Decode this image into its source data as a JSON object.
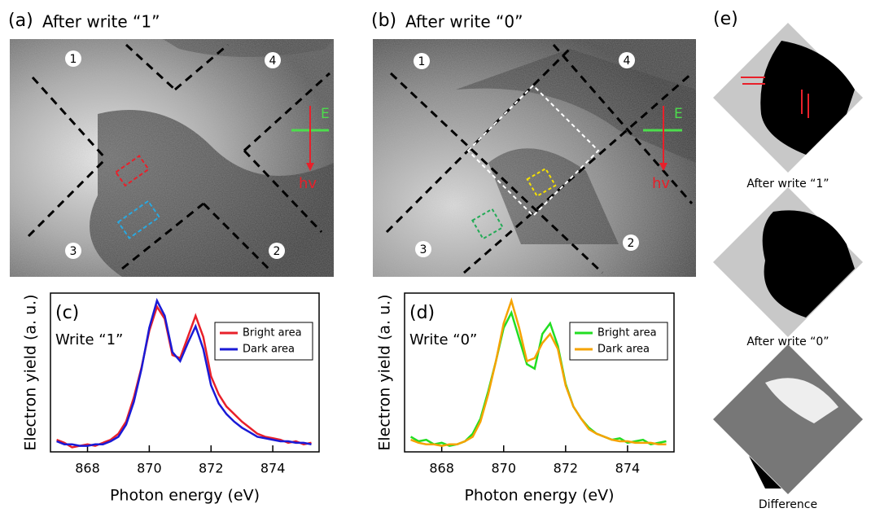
{
  "panels": {
    "a": {
      "label": "(a)",
      "title": "After write “1”",
      "regions": [
        "1",
        "4",
        "3",
        "2"
      ],
      "e_label": "E",
      "hv_label": "hv"
    },
    "b": {
      "label": "(b)",
      "title": "After write “0”",
      "regions": [
        "1",
        "4",
        "3",
        "2"
      ],
      "e_label": "E",
      "hv_label": "hv"
    },
    "e": {
      "label": "(e)",
      "captions": [
        "After write “1”",
        "After write “0”",
        "Difference"
      ]
    }
  },
  "chart_data": [
    {
      "type": "line",
      "panel_label": "(c)",
      "annotation": "Write “1”",
      "xlabel": "Photon energy (eV)",
      "ylabel": "Electron yield (a. u.)",
      "x": [
        867,
        867.25,
        867.5,
        867.75,
        868,
        868.25,
        868.5,
        868.75,
        869,
        869.25,
        869.5,
        869.75,
        870,
        870.25,
        870.5,
        870.75,
        871,
        871.25,
        871.5,
        871.75,
        872,
        872.25,
        872.5,
        872.75,
        873,
        873.25,
        873.5,
        873.75,
        874,
        874.25,
        874.5,
        874.75,
        875,
        875.25
      ],
      "xlim": [
        866.8,
        875.5
      ],
      "xticks": [
        868,
        870,
        872,
        874
      ],
      "ylim": [
        0,
        1.05
      ],
      "legend": "upper right",
      "series": [
        {
          "name": "Bright area",
          "color": "#e8202a",
          "values": [
            0.08,
            0.06,
            0.03,
            0.04,
            0.05,
            0.04,
            0.06,
            0.08,
            0.12,
            0.2,
            0.36,
            0.56,
            0.8,
            0.96,
            0.88,
            0.64,
            0.62,
            0.76,
            0.9,
            0.76,
            0.5,
            0.38,
            0.3,
            0.25,
            0.2,
            0.16,
            0.12,
            0.1,
            0.09,
            0.08,
            0.06,
            0.07,
            0.05,
            0.06
          ]
        },
        {
          "name": "Dark area",
          "color": "#1a1ad6",
          "values": [
            0.07,
            0.05,
            0.05,
            0.04,
            0.04,
            0.05,
            0.05,
            0.07,
            0.1,
            0.18,
            0.33,
            0.55,
            0.82,
            1.0,
            0.9,
            0.66,
            0.6,
            0.72,
            0.83,
            0.68,
            0.44,
            0.32,
            0.25,
            0.2,
            0.16,
            0.13,
            0.1,
            0.09,
            0.08,
            0.07,
            0.07,
            0.06,
            0.06,
            0.05
          ]
        }
      ]
    },
    {
      "type": "line",
      "panel_label": "(d)",
      "annotation": "Write “0”",
      "xlabel": "Photon energy (eV)",
      "ylabel": "Electron yield (a. u.)",
      "x": [
        867,
        867.25,
        867.5,
        867.75,
        868,
        868.25,
        868.5,
        868.75,
        869,
        869.25,
        869.5,
        869.75,
        870,
        870.25,
        870.5,
        870.75,
        871,
        871.25,
        871.5,
        871.75,
        872,
        872.25,
        872.5,
        872.75,
        873,
        873.25,
        873.5,
        873.75,
        874,
        874.25,
        874.5,
        874.75,
        875,
        875.25
      ],
      "xlim": [
        866.8,
        875.5
      ],
      "xticks": [
        868,
        870,
        872,
        874
      ],
      "ylim": [
        0,
        1.05
      ],
      "legend": "upper right",
      "series": [
        {
          "name": "Bright area",
          "color": "#22dd22",
          "values": [
            0.1,
            0.07,
            0.08,
            0.05,
            0.06,
            0.04,
            0.05,
            0.07,
            0.12,
            0.22,
            0.4,
            0.6,
            0.82,
            0.92,
            0.75,
            0.58,
            0.55,
            0.78,
            0.85,
            0.7,
            0.45,
            0.3,
            0.22,
            0.16,
            0.12,
            0.1,
            0.08,
            0.09,
            0.06,
            0.07,
            0.08,
            0.05,
            0.06,
            0.07
          ]
        },
        {
          "name": "Dark area",
          "color": "#f5a300",
          "values": [
            0.08,
            0.06,
            0.05,
            0.05,
            0.04,
            0.05,
            0.05,
            0.07,
            0.1,
            0.2,
            0.38,
            0.6,
            0.85,
            1.0,
            0.82,
            0.6,
            0.62,
            0.72,
            0.78,
            0.68,
            0.44,
            0.3,
            0.22,
            0.15,
            0.12,
            0.1,
            0.08,
            0.07,
            0.07,
            0.06,
            0.06,
            0.06,
            0.05,
            0.05
          ]
        }
      ]
    }
  ]
}
